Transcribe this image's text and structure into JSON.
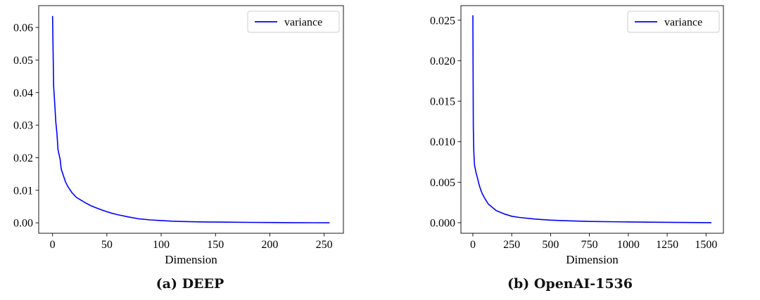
{
  "chart_data": [
    {
      "type": "line",
      "caption": "(a) DEEP",
      "xlabel": "Dimension",
      "ylabel": "",
      "xlim": [
        -12.75,
        267.75
      ],
      "ylim": [
        -0.0032,
        0.0667
      ],
      "xticks": [
        0,
        50,
        100,
        150,
        200,
        250
      ],
      "xtick_labels": [
        "0",
        "50",
        "100",
        "150",
        "200",
        "250"
      ],
      "yticks": [
        0.0,
        0.01,
        0.02,
        0.03,
        0.04,
        0.05,
        0.06
      ],
      "ytick_labels": [
        "0.00",
        "0.01",
        "0.02",
        "0.03",
        "0.04",
        "0.05",
        "0.06"
      ],
      "grid": false,
      "legend": "top-right",
      "series": [
        {
          "name": "variance",
          "color": "#0000ff",
          "x": [
            0,
            1,
            2,
            3,
            4,
            5,
            6,
            7,
            8,
            9,
            10,
            12,
            14,
            16,
            18,
            20,
            22,
            25,
            30,
            35,
            40,
            45,
            50,
            55,
            60,
            70,
            80,
            90,
            100,
            110,
            120,
            140,
            160,
            180,
            200,
            220,
            240,
            255
          ],
          "y": [
            0.0635,
            0.042,
            0.0365,
            0.031,
            0.0275,
            0.0225,
            0.021,
            0.0195,
            0.0165,
            0.0155,
            0.0145,
            0.0125,
            0.0112,
            0.0102,
            0.0092,
            0.0085,
            0.0078,
            0.0072,
            0.0062,
            0.0053,
            0.0046,
            0.004,
            0.0034,
            0.0029,
            0.0025,
            0.0018,
            0.0012,
            0.0009,
            0.0007,
            0.0005,
            0.0004,
            0.00028,
            0.0002,
            0.00014,
            0.0001,
            6e-05,
            3e-05,
            1e-05
          ]
        }
      ]
    },
    {
      "type": "line",
      "caption": "(b) OpenAI-1536",
      "xlabel": "Dimension",
      "ylabel": "",
      "xlim": [
        -76.75,
        1611.75
      ],
      "ylim": [
        -0.0013,
        0.0268
      ],
      "xticks": [
        0,
        250,
        500,
        750,
        1000,
        1250,
        1500
      ],
      "xtick_labels": [
        "0",
        "250",
        "500",
        "750",
        "1000",
        "1250",
        "1500"
      ],
      "yticks": [
        0.0,
        0.005,
        0.01,
        0.015,
        0.02,
        0.025
      ],
      "ytick_labels": [
        "0.000",
        "0.005",
        "0.010",
        "0.015",
        "0.020",
        "0.025"
      ],
      "grid": false,
      "legend": "top-right",
      "series": [
        {
          "name": "variance",
          "color": "#0000ff",
          "x": [
            0,
            3,
            6,
            10,
            15,
            20,
            30,
            40,
            50,
            60,
            80,
            100,
            125,
            150,
            200,
            250,
            300,
            400,
            500,
            600,
            750,
            1000,
            1250,
            1535
          ],
          "y": [
            0.0256,
            0.0118,
            0.0088,
            0.0072,
            0.0067,
            0.0062,
            0.0055,
            0.0047,
            0.0041,
            0.0036,
            0.0029,
            0.0023,
            0.0019,
            0.0015,
            0.0011,
            0.0008,
            0.00065,
            0.00045,
            0.00032,
            0.00024,
            0.00016,
            0.0001,
            5e-05,
            1e-05
          ]
        }
      ]
    }
  ]
}
